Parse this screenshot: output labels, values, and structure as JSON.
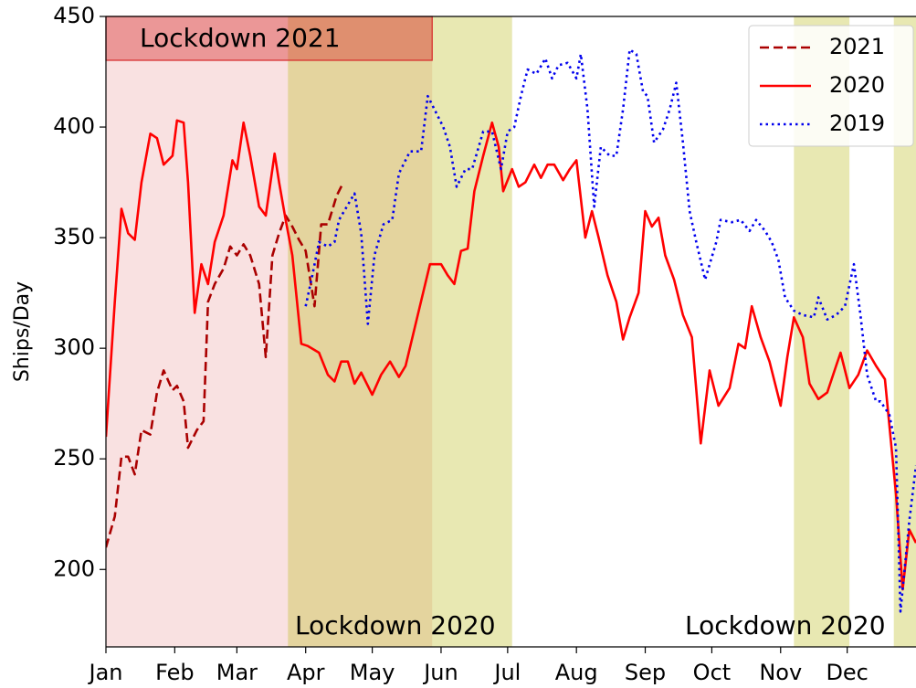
{
  "chart_data": {
    "type": "line",
    "y_label": "Ships/Day",
    "xlim": [
      0,
      365
    ],
    "ylim": [
      165,
      450
    ],
    "xticks": [
      {
        "value": 0,
        "label": "Jan"
      },
      {
        "value": 31,
        "label": "Feb"
      },
      {
        "value": 59,
        "label": "Mar"
      },
      {
        "value": 90,
        "label": "Apr"
      },
      {
        "value": 120,
        "label": "May"
      },
      {
        "value": 151,
        "label": "Jun"
      },
      {
        "value": 181,
        "label": "Jul"
      },
      {
        "value": 212,
        "label": "Aug"
      },
      {
        "value": 243,
        "label": "Sep"
      },
      {
        "value": 273,
        "label": "Oct"
      },
      {
        "value": 304,
        "label": "Nov"
      },
      {
        "value": 334,
        "label": "Dec"
      }
    ],
    "yticks": [
      200,
      250,
      300,
      350,
      400,
      450
    ],
    "legend": "upper right",
    "regions": [
      {
        "start": 0,
        "end": 147,
        "color": "#d62728"
      },
      {
        "start": 82,
        "end": 183,
        "color": "#bcbd22"
      },
      {
        "start": 310,
        "end": 335,
        "color": "#bcbd22"
      },
      {
        "start": 355,
        "end": 365,
        "color": "#bcbd22"
      }
    ],
    "annotations": [
      "Lockdown 2021",
      "Lockdown 2020",
      "Lockdown 2020"
    ],
    "series": [
      {
        "name": "2021",
        "color": "#aa0000",
        "linestyle": "dashed",
        "x": [
          0,
          4,
          7,
          10,
          13,
          16,
          20,
          23,
          26,
          30,
          32,
          35,
          37,
          41,
          44,
          46,
          49,
          53,
          56,
          59,
          62,
          65,
          69,
          72,
          75,
          78,
          81,
          84,
          87,
          90,
          94,
          97,
          100,
          104,
          107
        ],
        "values": [
          210,
          224,
          251,
          251,
          243,
          263,
          261,
          280,
          290,
          281,
          283,
          276,
          255,
          263,
          267,
          321,
          329,
          336,
          346,
          342,
          347,
          342,
          329,
          296,
          342,
          352,
          360,
          355,
          349,
          344,
          319,
          356,
          356,
          369,
          375
        ]
      },
      {
        "name": "2020",
        "color": "#ff0000",
        "linestyle": "solid",
        "x": [
          0,
          4,
          7,
          10,
          13,
          16,
          20,
          23,
          26,
          30,
          32,
          35,
          37,
          40,
          43,
          46,
          49,
          53,
          57,
          59,
          62,
          65,
          69,
          72,
          76,
          78,
          81,
          84,
          88,
          91,
          96,
          100,
          103,
          106,
          109,
          112,
          115,
          120,
          124,
          128,
          132,
          135,
          141,
          146,
          151,
          154,
          157,
          160,
          163,
          166,
          170,
          174,
          177,
          179,
          183,
          186,
          189,
          193,
          196,
          199,
          202,
          206,
          209,
          212,
          216,
          219,
          222,
          226,
          230,
          233,
          236,
          240,
          243,
          246,
          249,
          252,
          256,
          260,
          264,
          268,
          272,
          276,
          281,
          285,
          288,
          291,
          295,
          299,
          304,
          307,
          310,
          314,
          317,
          321,
          325,
          329,
          331,
          335,
          339,
          343,
          347,
          351,
          356,
          359,
          362,
          365
        ],
        "values": [
          260,
          321,
          363,
          352,
          349,
          375,
          397,
          395,
          383,
          387,
          403,
          402,
          375,
          316,
          338,
          329,
          348,
          360,
          385,
          381,
          402,
          387,
          364,
          360,
          388,
          375,
          358,
          342,
          302,
          301,
          298,
          288,
          285,
          294,
          294,
          284,
          289,
          279,
          288,
          294,
          287,
          292,
          317,
          338,
          338,
          333,
          329,
          344,
          345,
          371,
          387,
          402,
          391,
          371,
          381,
          373,
          375,
          383,
          377,
          383,
          383,
          376,
          381,
          385,
          350,
          362,
          350,
          333,
          321,
          304,
          314,
          325,
          362,
          355,
          359,
          342,
          331,
          315,
          305,
          257,
          290,
          274,
          282,
          302,
          300,
          319,
          305,
          294,
          274,
          296,
          314,
          305,
          284,
          277,
          280,
          292,
          298,
          282,
          288,
          299,
          292,
          286,
          234,
          191,
          218,
          212
        ]
      },
      {
        "name": "2019",
        "color": "#0000ee",
        "linestyle": "dotted",
        "x": [
          90,
          93,
          96,
          100,
          103,
          105,
          112,
          115,
          118,
          121,
          125,
          129,
          132,
          137,
          142,
          145,
          148,
          152,
          155,
          158,
          162,
          165,
          170,
          174,
          178,
          181,
          184,
          187,
          190,
          194,
          198,
          201,
          204,
          208,
          212,
          214,
          217,
          220,
          223,
          227,
          230,
          233,
          236,
          239,
          242,
          244,
          247,
          251,
          254,
          257,
          260,
          263,
          266,
          270,
          275,
          277,
          282,
          286,
          290,
          293,
          297,
          300,
          303,
          306,
          310,
          314,
          319,
          321,
          325,
          329,
          333,
          337,
          340,
          343,
          347,
          349,
          353,
          356,
          358,
          362,
          365
        ],
        "values": [
          319,
          333,
          348,
          346,
          348,
          358,
          370,
          352,
          311,
          342,
          356,
          358,
          379,
          389,
          389,
          414,
          408,
          400,
          391,
          373,
          381,
          381,
          398,
          398,
          381,
          398,
          400,
          414,
          426,
          424,
          431,
          422,
          428,
          429,
          422,
          433,
          408,
          364,
          391,
          387,
          387,
          408,
          435,
          433,
          416,
          414,
          393,
          399,
          408,
          420,
          393,
          362,
          348,
          331,
          348,
          358,
          357,
          358,
          353,
          358,
          353,
          348,
          340,
          323,
          317,
          315,
          314,
          323,
          313,
          315,
          319,
          338,
          315,
          288,
          276,
          276,
          270,
          255,
          181,
          222,
          247
        ]
      }
    ]
  }
}
